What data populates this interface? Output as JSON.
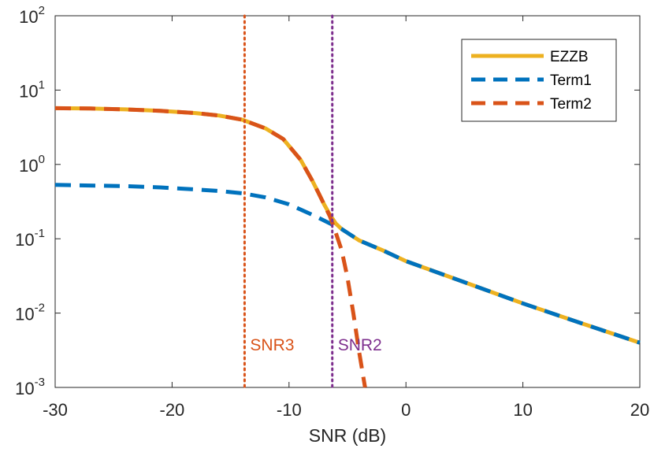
{
  "chart_data": {
    "type": "line",
    "title": "",
    "xlabel": "SNR (dB)",
    "ylabel": "",
    "xlim": [
      -30,
      20
    ],
    "ylim": [
      0.001,
      100
    ],
    "yscale": "log",
    "grid": false,
    "legend_position": "top-right",
    "x_ticks": [
      -30,
      -20,
      -10,
      0,
      10,
      20
    ],
    "y_ticks": [
      {
        "value": 0.001,
        "base": "10",
        "exp": "-3"
      },
      {
        "value": 0.01,
        "base": "10",
        "exp": "-2"
      },
      {
        "value": 0.1,
        "base": "10",
        "exp": "-1"
      },
      {
        "value": 1,
        "base": "10",
        "exp": "0"
      },
      {
        "value": 10,
        "base": "10",
        "exp": "1"
      },
      {
        "value": 100,
        "base": "10",
        "exp": "2"
      }
    ],
    "series": [
      {
        "name": "EZZB",
        "color": "#EDB120",
        "style": "solid",
        "x": [
          -30,
          -27,
          -24,
          -21,
          -18,
          -16,
          -14,
          -12,
          -10.5,
          -9,
          -8,
          -7.5,
          -7,
          -6.5,
          -6,
          -5.5,
          -5,
          -4,
          -2,
          0,
          5,
          10,
          15,
          20
        ],
        "y": [
          5.7,
          5.65,
          5.5,
          5.25,
          4.9,
          4.55,
          4.0,
          3.05,
          2.2,
          1.15,
          0.6,
          0.42,
          0.29,
          0.21,
          0.16,
          0.135,
          0.12,
          0.095,
          0.07,
          0.05,
          0.026,
          0.0135,
          0.0073,
          0.004
        ]
      },
      {
        "name": "Term1",
        "color": "#0072BD",
        "style": "dashed",
        "x": [
          -30,
          -27,
          -24,
          -21,
          -18,
          -16,
          -14,
          -12,
          -10,
          -8,
          -6.3,
          -5.5,
          -5,
          -4,
          -2,
          0,
          5,
          10,
          15,
          20
        ],
        "y": [
          0.53,
          0.52,
          0.51,
          0.49,
          0.46,
          0.44,
          0.41,
          0.36,
          0.29,
          0.21,
          0.155,
          0.135,
          0.12,
          0.095,
          0.07,
          0.05,
          0.026,
          0.0135,
          0.0073,
          0.004
        ]
      },
      {
        "name": "Term2",
        "color": "#D95319",
        "style": "dashed",
        "x": [
          -30,
          -27,
          -24,
          -21,
          -18,
          -16,
          -14,
          -12,
          -10.5,
          -9,
          -8,
          -7.5,
          -7,
          -6.5,
          -6,
          -5.5,
          -5,
          -4.5,
          -4,
          -3.5
        ],
        "y": [
          5.7,
          5.65,
          5.5,
          5.25,
          4.9,
          4.55,
          4.0,
          3.05,
          2.2,
          1.15,
          0.6,
          0.42,
          0.29,
          0.2,
          0.12,
          0.07,
          0.03,
          0.01,
          0.003,
          0.001
        ]
      }
    ],
    "vlines": [
      {
        "x": -13.8,
        "label": "SNR3",
        "color": "#D95319"
      },
      {
        "x": -6.3,
        "label": "SNR2",
        "color": "#7E2F8E"
      }
    ]
  }
}
